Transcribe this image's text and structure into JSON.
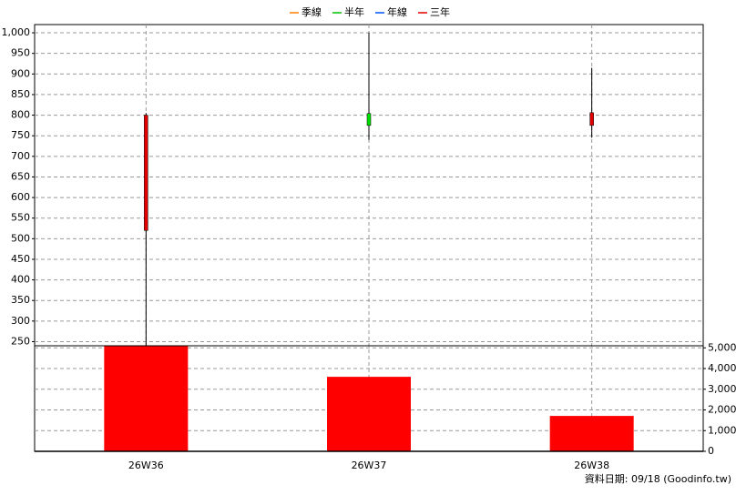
{
  "chart_data": {
    "type": "candlestick",
    "legend": [
      {
        "name": "季線",
        "color": "#ff8000"
      },
      {
        "name": "半年",
        "color": "#00c000"
      },
      {
        "name": "年線",
        "color": "#0050ff"
      },
      {
        "name": "三年",
        "color": "#e00000"
      }
    ],
    "categories": [
      "26W36",
      "26W37",
      "26W38"
    ],
    "open": [
      520,
      804,
      775
    ],
    "high": [
      805,
      1000,
      915
    ],
    "low": [
      241,
      740,
      745
    ],
    "close": [
      800,
      775,
      806
    ],
    "up_color": "#e00000",
    "down_color": "#00e000",
    "volume": {
      "name": "volume",
      "color": "#ff0000",
      "values": [
        5100,
        3600,
        1710
      ],
      "axis": "y2"
    },
    "ylim": [
      240,
      1020
    ],
    "yticks": [
      250,
      300,
      350,
      400,
      450,
      500,
      550,
      600,
      650,
      700,
      750,
      800,
      850,
      900,
      950,
      {
        "value": 1000,
        "label": "1,000"
      }
    ],
    "y2lim": [
      0,
      5100
    ],
    "y2ticks": [
      0,
      {
        "value": 1000,
        "label": "1,000"
      },
      {
        "value": 2000,
        "label": "2,000"
      },
      {
        "value": 3000,
        "label": "3,000"
      },
      {
        "value": 4000,
        "label": "4,000"
      },
      {
        "value": 5000,
        "label": "5,000"
      }
    ],
    "grid": true,
    "footer": "資料日期: 09/18  (Goodinfo.tw)"
  }
}
